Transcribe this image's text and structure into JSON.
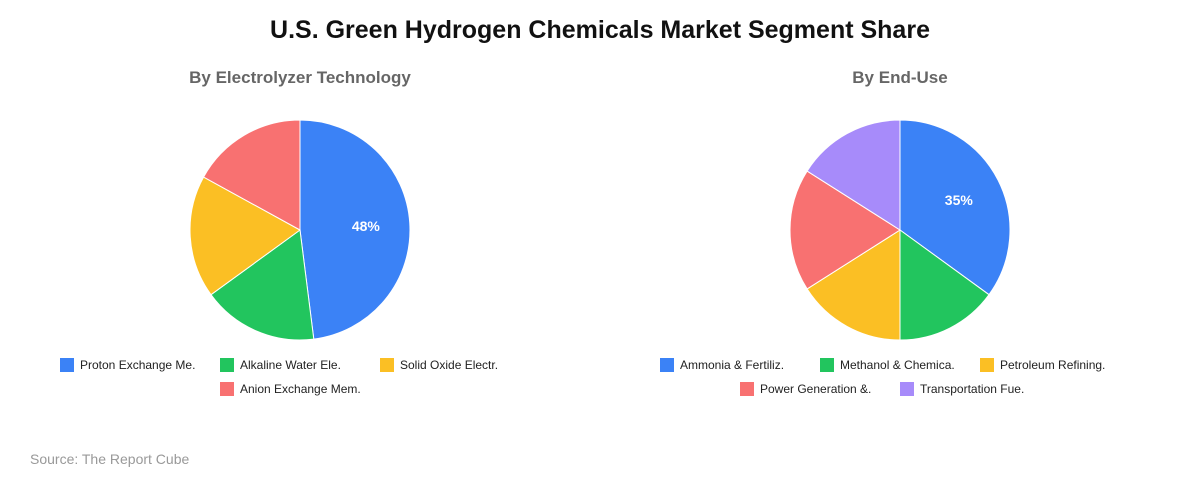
{
  "title": "U.S. Green Hydrogen Chemicals Market Segment Share",
  "source": "Source: The Report Cube",
  "chart_data": [
    {
      "type": "pie",
      "title": "By Electrolyzer Technology",
      "categories": [
        "Proton Exchange Me.",
        "Alkaline Water Ele.",
        "Solid Oxide Electr.",
        "Anion Exchange Mem."
      ],
      "values": [
        48,
        17,
        18,
        17
      ],
      "colors": [
        "#3b82f6",
        "#22c55e",
        "#fbbf24",
        "#f87171"
      ],
      "data_labels": [
        "48%",
        "",
        "",
        ""
      ],
      "legend_position": "bottom"
    },
    {
      "type": "pie",
      "title": "By End-Use",
      "categories": [
        "Ammonia & Fertiliz.",
        "Methanol & Chemica.",
        "Petroleum Refining.",
        "Power Generation &.",
        "Transportation Fue."
      ],
      "values": [
        35,
        15,
        16,
        18,
        16
      ],
      "colors": [
        "#3b82f6",
        "#22c55e",
        "#fbbf24",
        "#f87171",
        "#a78bfa"
      ],
      "data_labels": [
        "35%",
        "",
        "",
        "",
        ""
      ],
      "legend_position": "bottom"
    }
  ]
}
